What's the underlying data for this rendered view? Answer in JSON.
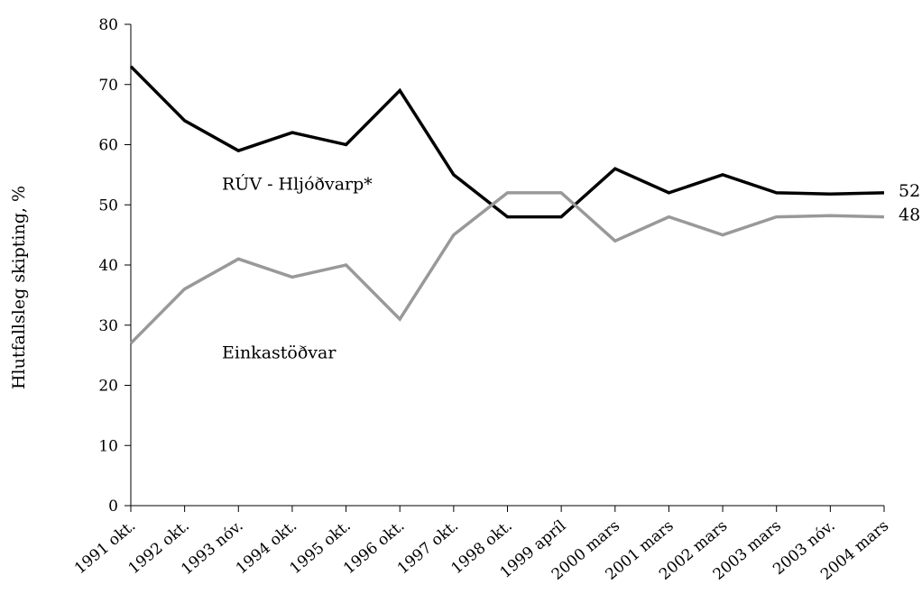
{
  "chart_data": {
    "type": "line",
    "title": "",
    "xlabel": "",
    "ylabel": "Hlutfallsleg skipting, %",
    "ylim": [
      0,
      80
    ],
    "yticks": [
      0,
      10,
      20,
      30,
      40,
      50,
      60,
      70,
      80
    ],
    "grid": false,
    "categories": [
      "1991 okt.",
      "1992 okt.",
      "1993 nóv.",
      "1994 okt.",
      "1995 okt.",
      "1996 okt.",
      "1997 okt.",
      "1998 okt.",
      "1999 apríl",
      "2000 mars",
      "2001 mars",
      "2002 mars",
      "2003 mars",
      "2003 nóv.",
      "2004 mars"
    ],
    "series": [
      {
        "name": "RÚV - Hljóðvarp*",
        "color": "#000000",
        "values": [
          73,
          64,
          59,
          62,
          60,
          69,
          55,
          48,
          48,
          56,
          52,
          55,
          52,
          51.8,
          52
        ],
        "end_label": "52"
      },
      {
        "name": "Einkastöðvar",
        "color": "#999999",
        "values": [
          27,
          36,
          41,
          38,
          40,
          31,
          45,
          52,
          52,
          44,
          48,
          45,
          48,
          48.2,
          48
        ],
        "end_label": "48"
      }
    ]
  }
}
